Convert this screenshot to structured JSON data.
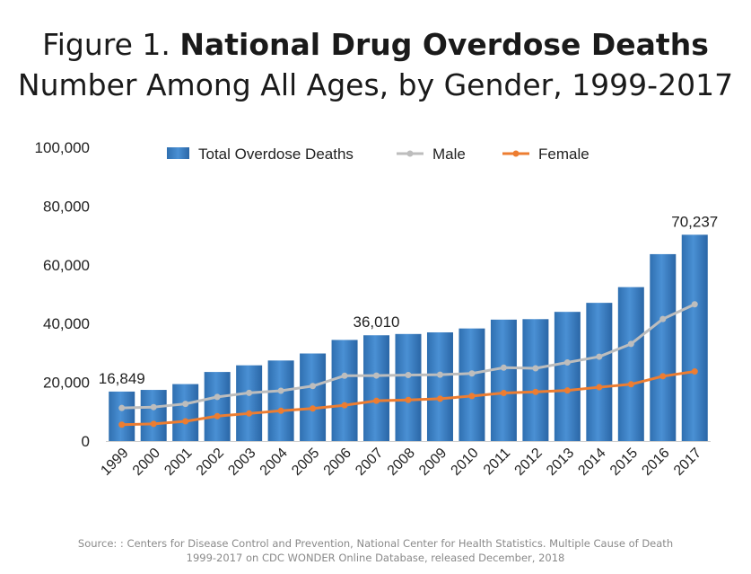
{
  "title": {
    "prefix": "Figure 1.",
    "bold": "National Drug Overdose Deaths",
    "subtitle": "Number Among All Ages, by Gender, 1999-2017"
  },
  "source": {
    "line1": "Source: : Centers for Disease Control and Prevention, National Center for Health Statistics. Multiple Cause of Death",
    "line2": "1999-2017 on CDC WONDER Online Database, released December, 2018"
  },
  "chart_data": {
    "type": "bar",
    "categories": [
      "1999",
      "2000",
      "2001",
      "2002",
      "2003",
      "2004",
      "2005",
      "2006",
      "2007",
      "2008",
      "2009",
      "2010",
      "2011",
      "2012",
      "2013",
      "2014",
      "2015",
      "2016",
      "2017"
    ],
    "series": [
      {
        "name": "Total Overdose Deaths",
        "type": "bar",
        "color": "#3d85c6",
        "values": [
          16849,
          17415,
          19394,
          23518,
          25785,
          27424,
          29813,
          34425,
          36010,
          36450,
          37004,
          38329,
          41340,
          41502,
          43982,
          47055,
          52404,
          63632,
          70237
        ]
      },
      {
        "name": "Male",
        "type": "line",
        "color": "#bdbdbd",
        "values": [
          11258,
          11563,
          12658,
          15028,
          16399,
          17120,
          18724,
          22231,
          22305,
          22468,
          22593,
          23006,
          24987,
          24774,
          26754,
          28725,
          33073,
          41558,
          46552
        ]
      },
      {
        "name": "Female",
        "type": "line",
        "color": "#ed7d31",
        "values": [
          5591,
          5852,
          6736,
          8490,
          9386,
          10304,
          11089,
          12194,
          13705,
          13982,
          14411,
          15323,
          16353,
          16728,
          17228,
          18330,
          19331,
          22074,
          23685
        ]
      }
    ],
    "data_labels": [
      {
        "category": "1999",
        "text": "16,849"
      },
      {
        "category": "2007",
        "text": "36,010"
      },
      {
        "category": "2017",
        "text": "70,237"
      }
    ],
    "yticks": [
      {
        "value": 0,
        "label": "0"
      },
      {
        "value": 20000,
        "label": "20,000"
      },
      {
        "value": 40000,
        "label": "40,000"
      },
      {
        "value": 60000,
        "label": "60,000"
      },
      {
        "value": 80000,
        "label": "80,000"
      },
      {
        "value": 100000,
        "label": "100,000"
      }
    ],
    "ylim": [
      0,
      100000
    ],
    "grid": false,
    "legend_position": "top",
    "xlabel": "",
    "ylabel": ""
  }
}
